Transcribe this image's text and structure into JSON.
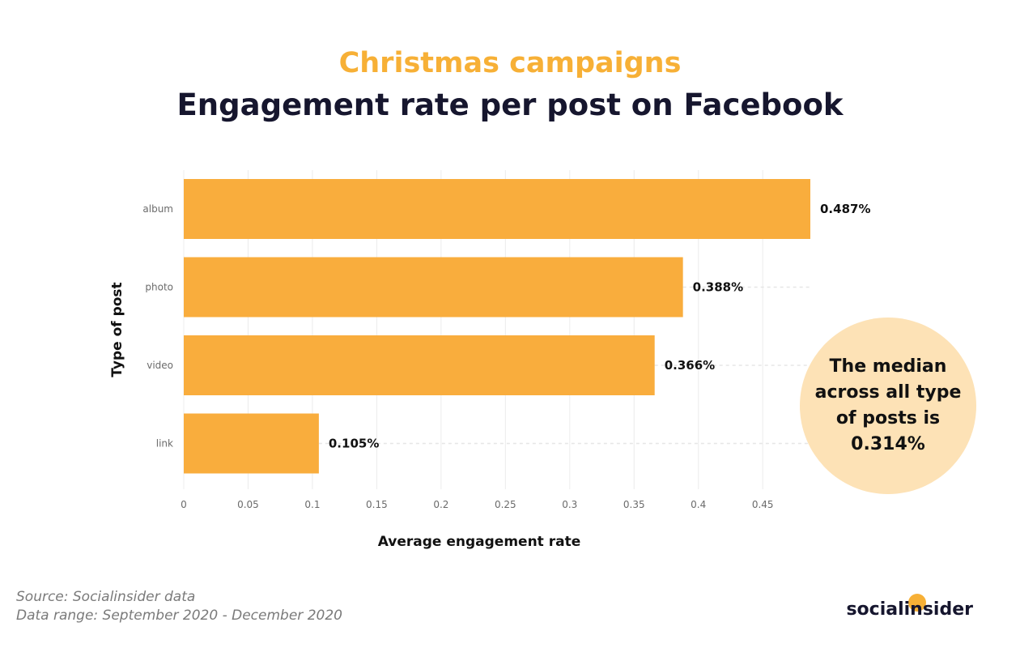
{
  "title_top": "Christmas campaigns",
  "title_main": "Engagement rate per post on Facebook",
  "median_note": {
    "before": "The median across all type of posts is ",
    "value": "0.314%"
  },
  "footer": {
    "source": "Source: Socialinsider data",
    "range": "Data range: September 2020 - December 2020"
  },
  "brand": "socialinsider",
  "colors": {
    "bar": "#f9ad3d",
    "accent_title": "#f7b036",
    "median_circle": "#fde2b6"
  },
  "chart_data": {
    "type": "bar",
    "orientation": "horizontal",
    "categories": [
      "album",
      "photo",
      "video",
      "link"
    ],
    "values": [
      0.487,
      0.388,
      0.366,
      0.105
    ],
    "value_labels": [
      "0.487%",
      "0.388%",
      "0.366%",
      "0.105%"
    ],
    "xlabel": "Average engagement rate",
    "ylabel": "Type of post",
    "xlim": [
      0,
      0.487
    ],
    "xticks": [
      "0",
      "0.05",
      "0.1",
      "0.15",
      "0.2",
      "0.25",
      "0.3",
      "0.35",
      "0.4",
      "0.45"
    ],
    "grid": true,
    "median": 0.314
  }
}
